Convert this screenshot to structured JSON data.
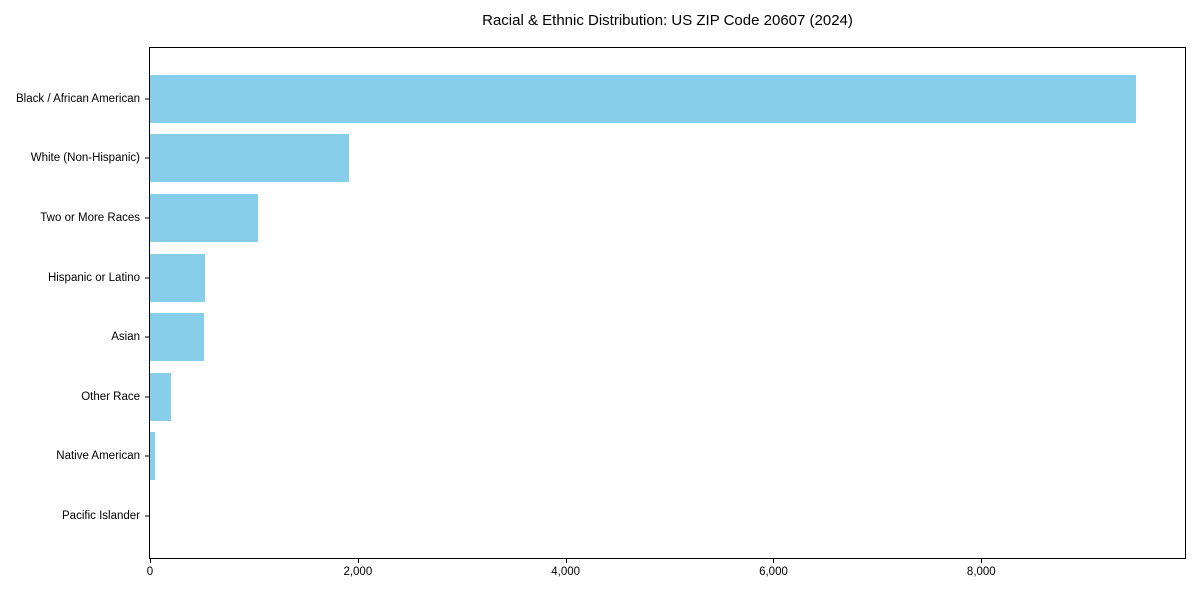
{
  "title": "Racial & Ethnic Distribution: US ZIP Code 20607 (2024)",
  "colors": {
    "bar": "#87CEEB",
    "axis": "#000000",
    "text": "#000000",
    "background": "#ffffff"
  },
  "chart_data": {
    "type": "bar",
    "orientation": "horizontal",
    "title": "Racial & Ethnic Distribution: US ZIP Code 20607 (2024)",
    "categories": [
      "Black / African American",
      "White (Non-Hispanic)",
      "Two or More Races",
      "Hispanic or Latino",
      "Asian",
      "Other Race",
      "Native American",
      "Pacific Islander"
    ],
    "values": [
      9485,
      1915,
      1040,
      530,
      515,
      205,
      48,
      0
    ],
    "xlabel": "",
    "ylabel": "",
    "xlim": [
      0,
      9960
    ],
    "xticks": [
      0,
      2000,
      4000,
      6000,
      8000
    ],
    "xtick_labels": [
      "0",
      "2,000",
      "4,000",
      "6,000",
      "8,000"
    ],
    "grid": false,
    "legend": null,
    "bar_color": "#87CEEB"
  }
}
